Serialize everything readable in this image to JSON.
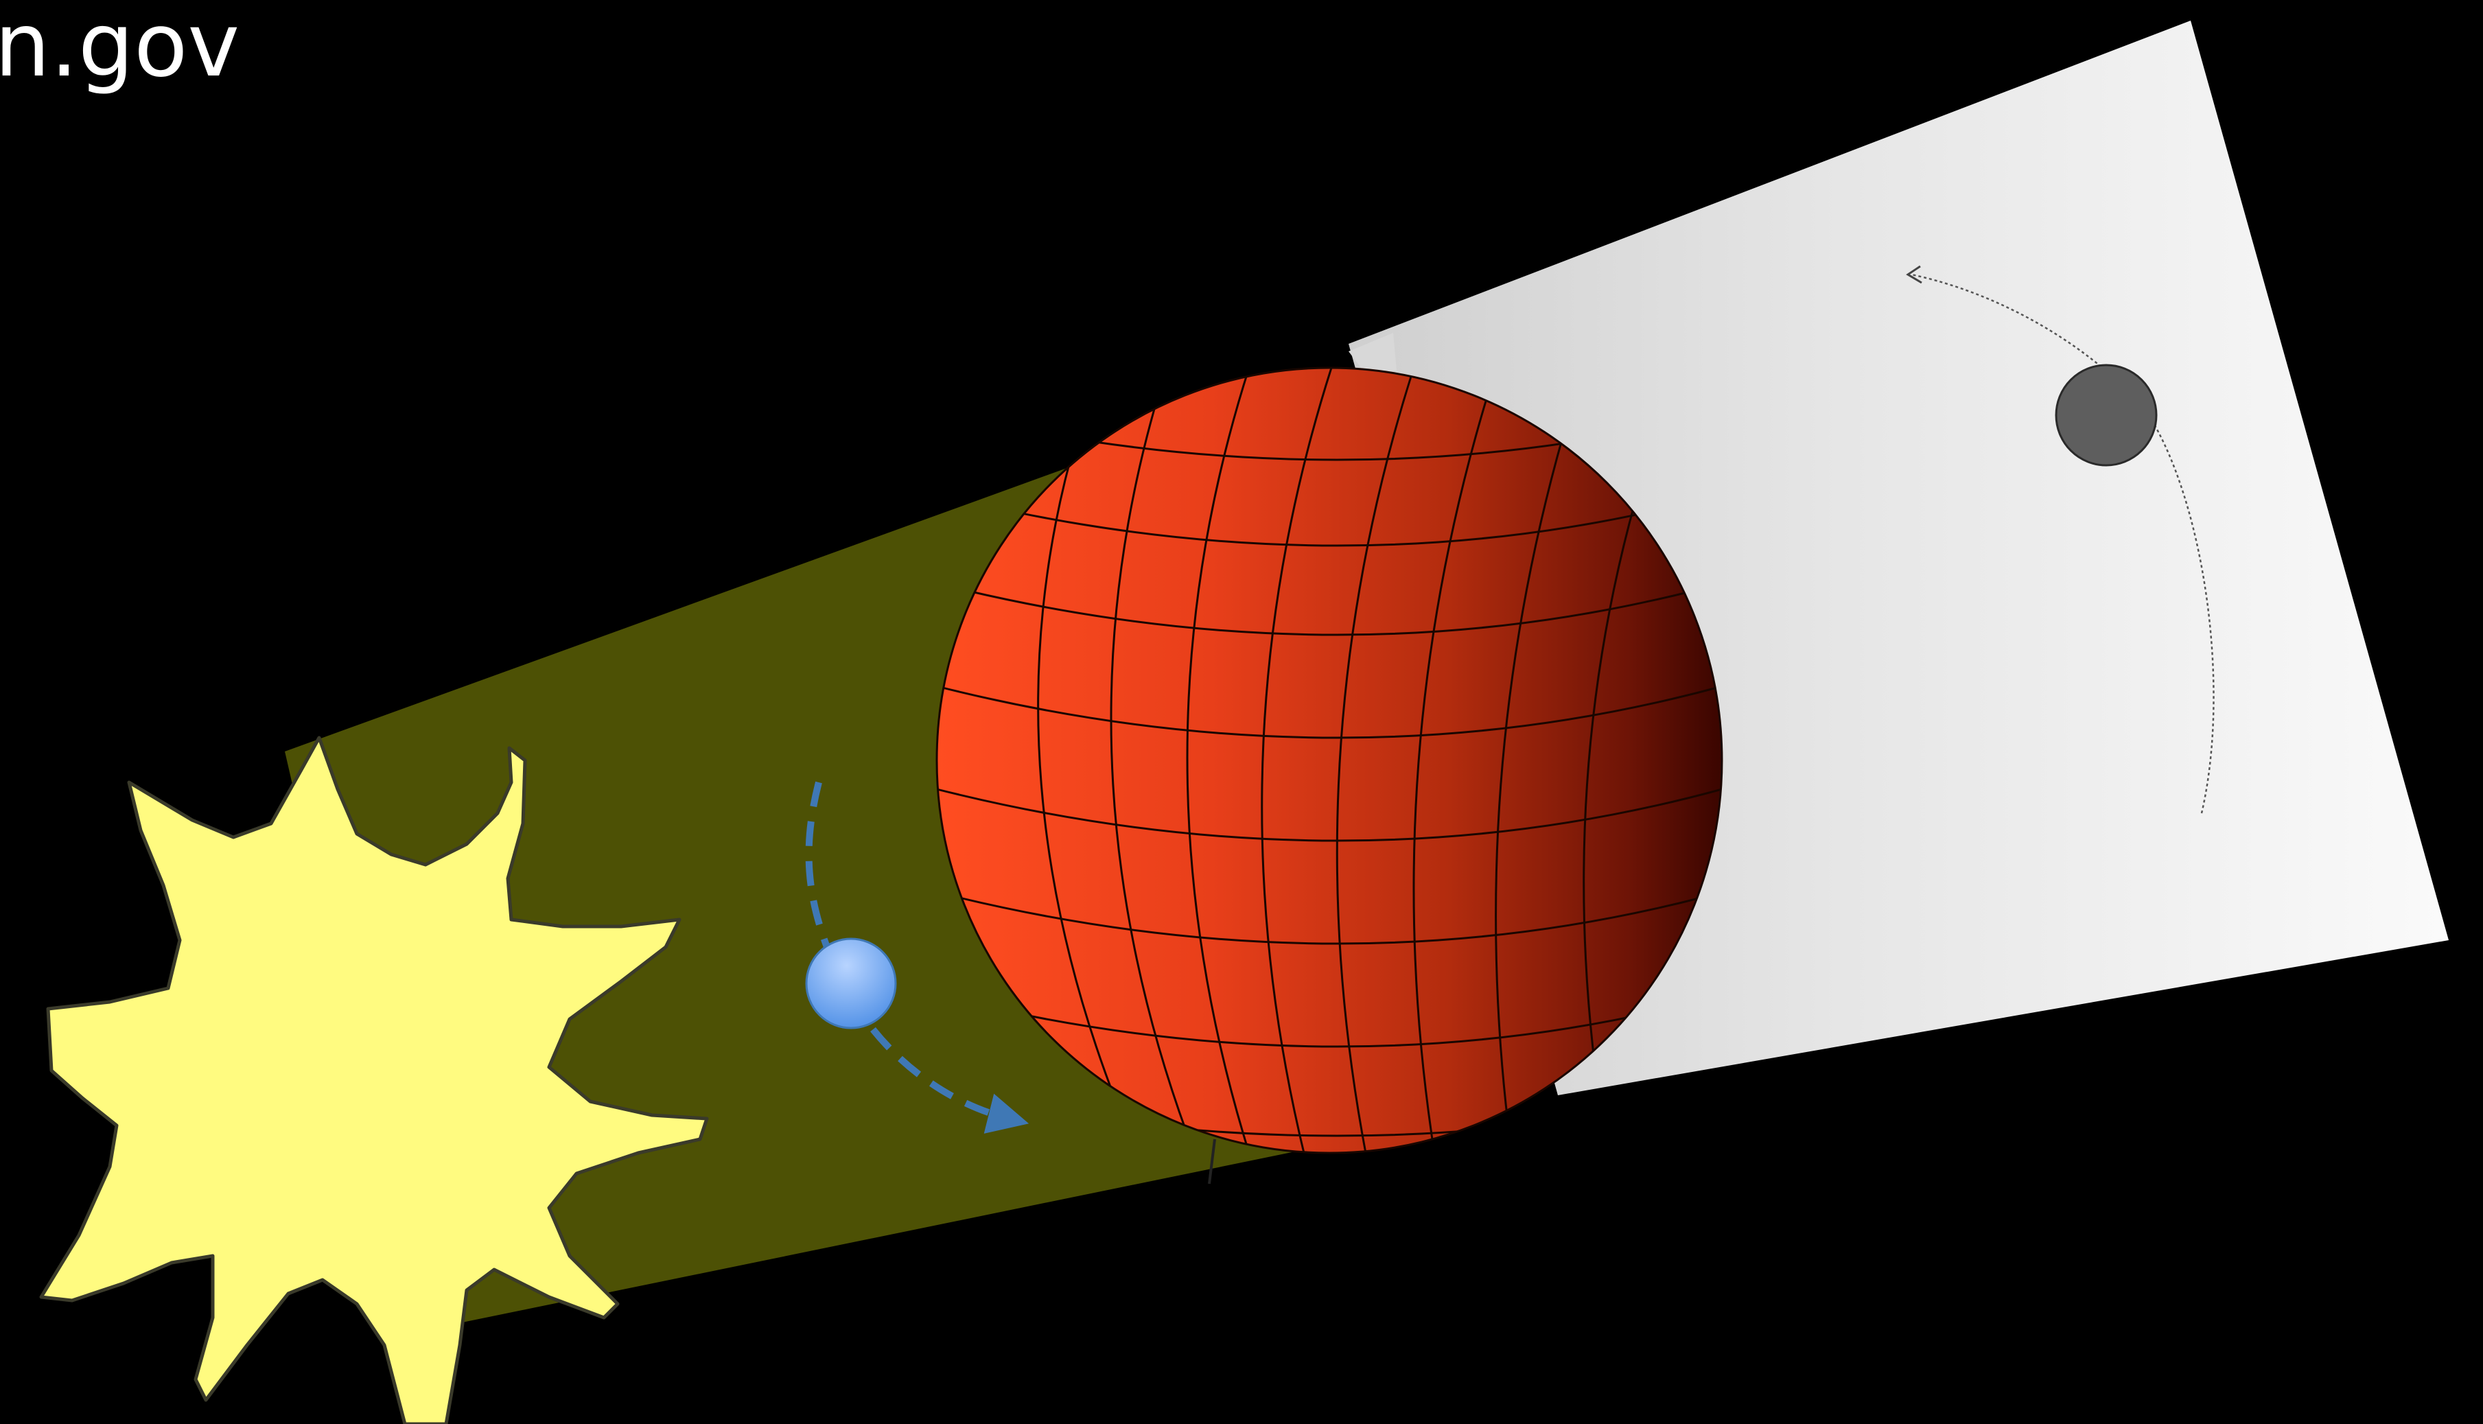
{
  "header": {
    "source_credit": "n.gov"
  },
  "colors": {
    "background": "#000000",
    "sun_fill": "#fffb80",
    "sun_outline": "#3a3a2a",
    "day_side_beam": "#4d5105",
    "night_side_screen": "#e9e9e9",
    "planet_light": "#ff4d21",
    "planet_dark": "#3a0500",
    "near_moon": "#7fb2ff",
    "near_moon_path": "#3f78b5",
    "far_moon": "#5e5e5e",
    "far_moon_path": "#555555"
  },
  "icons": {
    "sun": "sun-icon",
    "planet": "planet-globe-icon",
    "near_moon": "moon-icon",
    "far_moon": "moon-icon"
  }
}
